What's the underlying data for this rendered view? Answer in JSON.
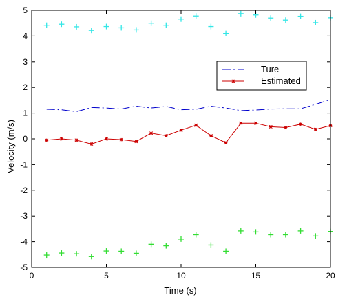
{
  "chart_data": {
    "type": "line",
    "xlabel": "Time (s)",
    "ylabel": "Velocity (m/s)",
    "xlim": [
      0,
      20
    ],
    "ylim": [
      -5,
      5
    ],
    "xticks": [
      "0",
      "5",
      "10",
      "15",
      "20"
    ],
    "yticks": [
      "5",
      "4",
      "3",
      "2",
      "1",
      "0",
      "-1",
      "-2",
      "-3",
      "-4",
      "-5"
    ],
    "grid": false,
    "legend_position": "upper-right",
    "x": [
      1,
      2,
      3,
      4,
      5,
      6,
      7,
      8,
      9,
      10,
      11,
      12,
      13,
      14,
      15,
      16,
      17,
      18,
      19,
      20
    ],
    "series": [
      {
        "name": "Ture",
        "style": "dash-dot",
        "color": "#0000cc",
        "in_legend": true,
        "values": [
          1.15,
          1.13,
          1.06,
          1.22,
          1.2,
          1.16,
          1.27,
          1.2,
          1.26,
          1.13,
          1.15,
          1.27,
          1.2,
          1.1,
          1.12,
          1.16,
          1.17,
          1.17,
          1.34,
          1.53
        ]
      },
      {
        "name": "Estimated",
        "style": "line-star",
        "color": "#cc0000",
        "in_legend": true,
        "values": [
          -0.05,
          0.0,
          -0.05,
          -0.2,
          0.0,
          -0.03,
          -0.1,
          0.22,
          0.12,
          0.34,
          0.53,
          0.12,
          -0.15,
          0.61,
          0.61,
          0.47,
          0.44,
          0.57,
          0.37,
          0.52
        ]
      },
      {
        "name": "",
        "style": "plus",
        "color": "#33e6e6",
        "in_legend": false,
        "values": [
          4.42,
          4.46,
          4.36,
          4.22,
          4.37,
          4.32,
          4.24,
          4.5,
          4.42,
          4.66,
          4.78,
          4.37,
          4.1,
          4.87,
          4.82,
          4.7,
          4.62,
          4.77,
          4.52,
          4.71
        ]
      },
      {
        "name": "",
        "style": "plus",
        "color": "#33dd33",
        "in_legend": false,
        "values": [
          -4.52,
          -4.44,
          -4.47,
          -4.58,
          -4.36,
          -4.37,
          -4.45,
          -4.1,
          -4.16,
          -3.9,
          -3.73,
          -4.13,
          -4.37,
          -3.58,
          -3.62,
          -3.73,
          -3.73,
          -3.58,
          -3.78,
          -3.6
        ]
      }
    ]
  }
}
